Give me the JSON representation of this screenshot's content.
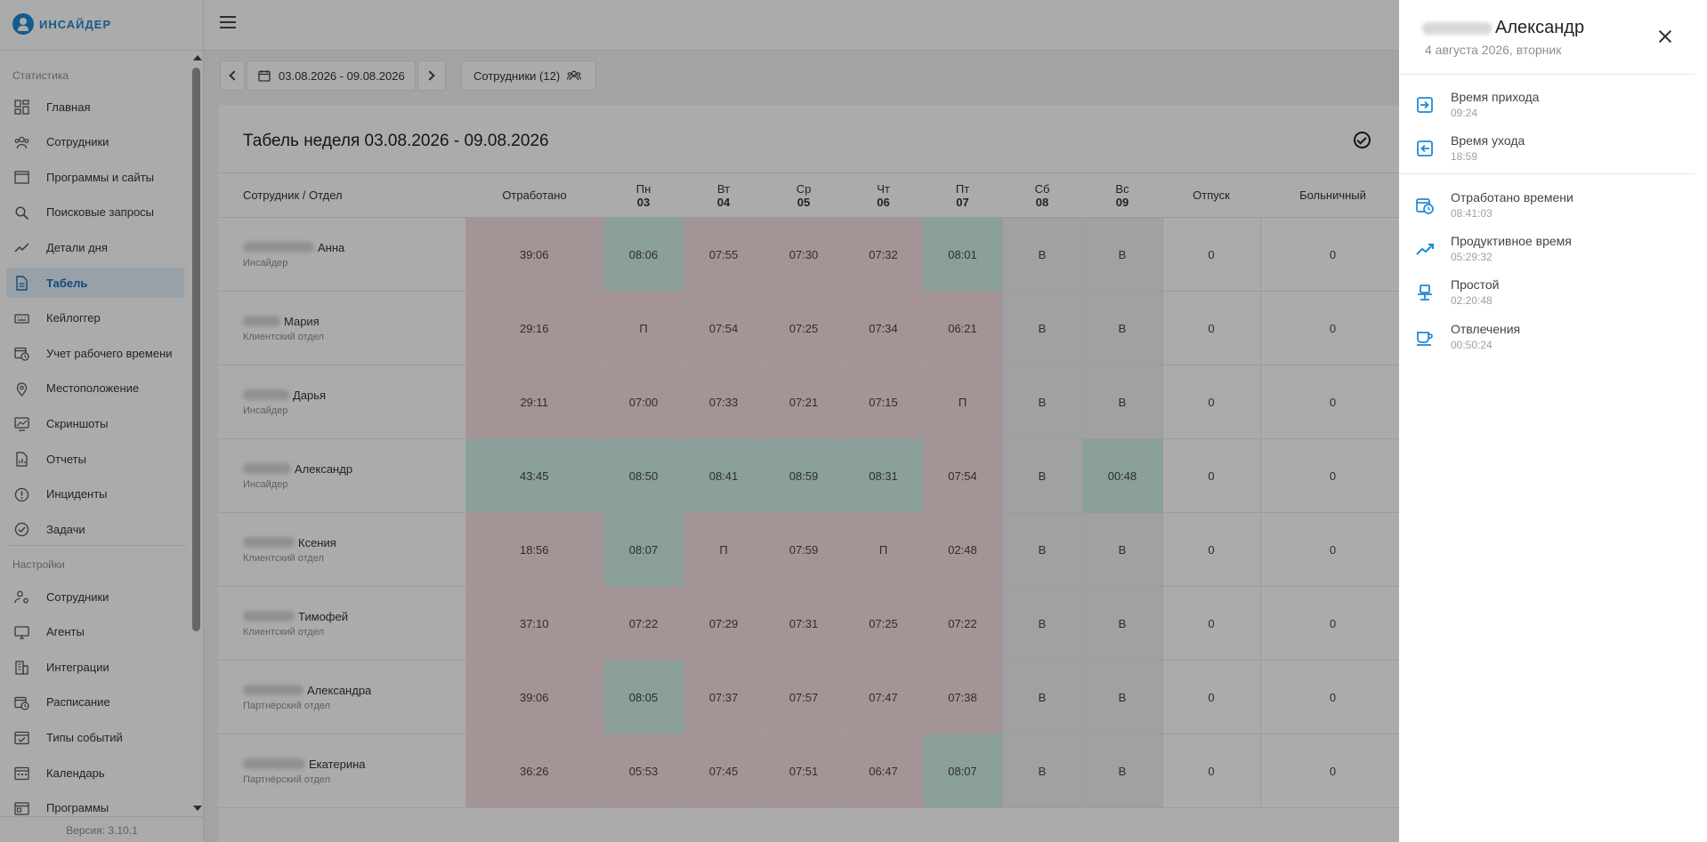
{
  "app": {
    "logo_text": "ИНСАЙДЕР",
    "version": "Версия: 3.10.1"
  },
  "sidebar": {
    "section_stats": "Статистика",
    "section_settings": "Настройки",
    "stats_items": [
      {
        "label": "Главная",
        "icon": "dashboard-icon"
      },
      {
        "label": "Сотрудники",
        "icon": "users-icon"
      },
      {
        "label": "Программы и сайты",
        "icon": "window-icon"
      },
      {
        "label": "Поисковые запросы",
        "icon": "search-icon"
      },
      {
        "label": "Детали дня",
        "icon": "trend-icon"
      },
      {
        "label": "Табель",
        "icon": "document-icon"
      },
      {
        "label": "Кейлоггер",
        "icon": "keyboard-icon"
      },
      {
        "label": "Учет рабочего времени",
        "icon": "calendar-clock-icon"
      },
      {
        "label": "Местоположение",
        "icon": "location-icon"
      },
      {
        "label": "Скриншоты",
        "icon": "screenshot-icon"
      },
      {
        "label": "Отчеты",
        "icon": "report-icon"
      },
      {
        "label": "Инциденты",
        "icon": "alert-icon"
      },
      {
        "label": "Задачи",
        "icon": "check-circle-icon"
      }
    ],
    "settings_items": [
      {
        "label": "Сотрудники",
        "icon": "user-settings-icon"
      },
      {
        "label": "Агенты",
        "icon": "monitor-icon"
      },
      {
        "label": "Интеграции",
        "icon": "building-icon"
      },
      {
        "label": "Расписание",
        "icon": "calendar-clock-icon"
      },
      {
        "label": "Типы событий",
        "icon": "calendar-check-icon"
      },
      {
        "label": "Календарь",
        "icon": "calendar-icon"
      },
      {
        "label": "Программы",
        "icon": "programs-icon"
      }
    ]
  },
  "toolbar": {
    "date_range": "03.08.2026 - 09.08.2026",
    "employees_button": "Сотрудники (12)"
  },
  "tabel": {
    "title": "Табель неделя 03.08.2026 - 09.08.2026",
    "headers": {
      "employee": "Сотрудник / Отдел",
      "worked": "Отработано",
      "vacation": "Отпуск",
      "sick": "Больничный"
    },
    "days": [
      {
        "name": "Пн",
        "num": "03"
      },
      {
        "name": "Вт",
        "num": "04"
      },
      {
        "name": "Ср",
        "num": "05"
      },
      {
        "name": "Чт",
        "num": "06"
      },
      {
        "name": "Пт",
        "num": "07"
      },
      {
        "name": "Сб",
        "num": "08"
      },
      {
        "name": "Вс",
        "num": "09"
      }
    ],
    "rows": [
      {
        "name": "Анна",
        "dept": "Инсайдер",
        "worked": "39:06",
        "worked_c": "r",
        "days": [
          "08:06",
          "07:55",
          "07:30",
          "07:32",
          "08:01",
          "В",
          "В"
        ],
        "day_c": [
          "g",
          "r",
          "r",
          "r",
          "g",
          "w",
          "w"
        ],
        "vacation": "0",
        "sick": "0"
      },
      {
        "name": "Мария",
        "dept": "Клиентский отдел",
        "worked": "29:16",
        "worked_c": "r",
        "days": [
          "П",
          "07:54",
          "07:25",
          "07:34",
          "06:21",
          "В",
          "В"
        ],
        "day_c": [
          "r",
          "r",
          "r",
          "r",
          "r",
          "w",
          "w"
        ],
        "vacation": "0",
        "sick": "0"
      },
      {
        "name": "Дарья",
        "dept": "Инсайдер",
        "worked": "29:11",
        "worked_c": "r",
        "days": [
          "07:00",
          "07:33",
          "07:21",
          "07:15",
          "П",
          "В",
          "В"
        ],
        "day_c": [
          "r",
          "r",
          "r",
          "r",
          "r",
          "w",
          "w"
        ],
        "vacation": "0",
        "sick": "0"
      },
      {
        "name": "Александр",
        "dept": "Инсайдер",
        "worked": "43:45",
        "worked_c": "g",
        "days": [
          "08:50",
          "08:41",
          "08:59",
          "08:31",
          "07:54",
          "В",
          "00:48"
        ],
        "day_c": [
          "g",
          "g",
          "g",
          "g",
          "r",
          "w",
          "g"
        ],
        "vacation": "0",
        "sick": "0"
      },
      {
        "name": "Ксения",
        "dept": "Клиентский отдел",
        "worked": "18:56",
        "worked_c": "r",
        "days": [
          "08:07",
          "П",
          "07:59",
          "П",
          "02:48",
          "В",
          "В"
        ],
        "day_c": [
          "g",
          "r",
          "r",
          "r",
          "r",
          "w",
          "w"
        ],
        "vacation": "0",
        "sick": "0"
      },
      {
        "name": "Тимофей",
        "dept": "Клиентский отдел",
        "worked": "37:10",
        "worked_c": "r",
        "days": [
          "07:22",
          "07:29",
          "07:31",
          "07:25",
          "07:22",
          "В",
          "В"
        ],
        "day_c": [
          "r",
          "r",
          "r",
          "r",
          "r",
          "w",
          "w"
        ],
        "vacation": "0",
        "sick": "0"
      },
      {
        "name": "Александра",
        "dept": "Партнёрский отдел",
        "worked": "39:06",
        "worked_c": "r",
        "days": [
          "08:05",
          "07:37",
          "07:57",
          "07:47",
          "07:38",
          "В",
          "В"
        ],
        "day_c": [
          "g",
          "r",
          "r",
          "r",
          "r",
          "w",
          "w"
        ],
        "vacation": "0",
        "sick": "0"
      },
      {
        "name": "Екатерина",
        "dept": "Партнёрский отдел",
        "worked": "36:26",
        "worked_c": "r",
        "days": [
          "05:53",
          "07:45",
          "07:51",
          "06:47",
          "08:07",
          "В",
          "В"
        ],
        "day_c": [
          "r",
          "r",
          "r",
          "r",
          "g",
          "w",
          "w"
        ],
        "vacation": "0",
        "sick": "0"
      }
    ]
  },
  "drawer": {
    "name": "Александр",
    "date": "4 августа 2026, вторник",
    "items": [
      {
        "label": "Время прихода",
        "value": "09:24",
        "icon": "arrive-icon"
      },
      {
        "label": "Время ухода",
        "value": "18:59",
        "icon": "leave-icon"
      },
      {
        "label": "Отработано времени",
        "value": "08:41:03",
        "icon": "worked-time-icon"
      },
      {
        "label": "Продуктивное время",
        "value": "05:29:32",
        "icon": "productive-trend-icon"
      },
      {
        "label": "Простой",
        "value": "02:20:48",
        "icon": "idle-chair-icon"
      },
      {
        "label": "Отвлечения",
        "value": "00:50:24",
        "icon": "coffee-icon"
      }
    ]
  },
  "colors": {
    "accent": "#1e88d6",
    "late_red": "#f6dde0",
    "ok_green": "#cfeee7",
    "weekend_gray": "#eef0f3"
  }
}
